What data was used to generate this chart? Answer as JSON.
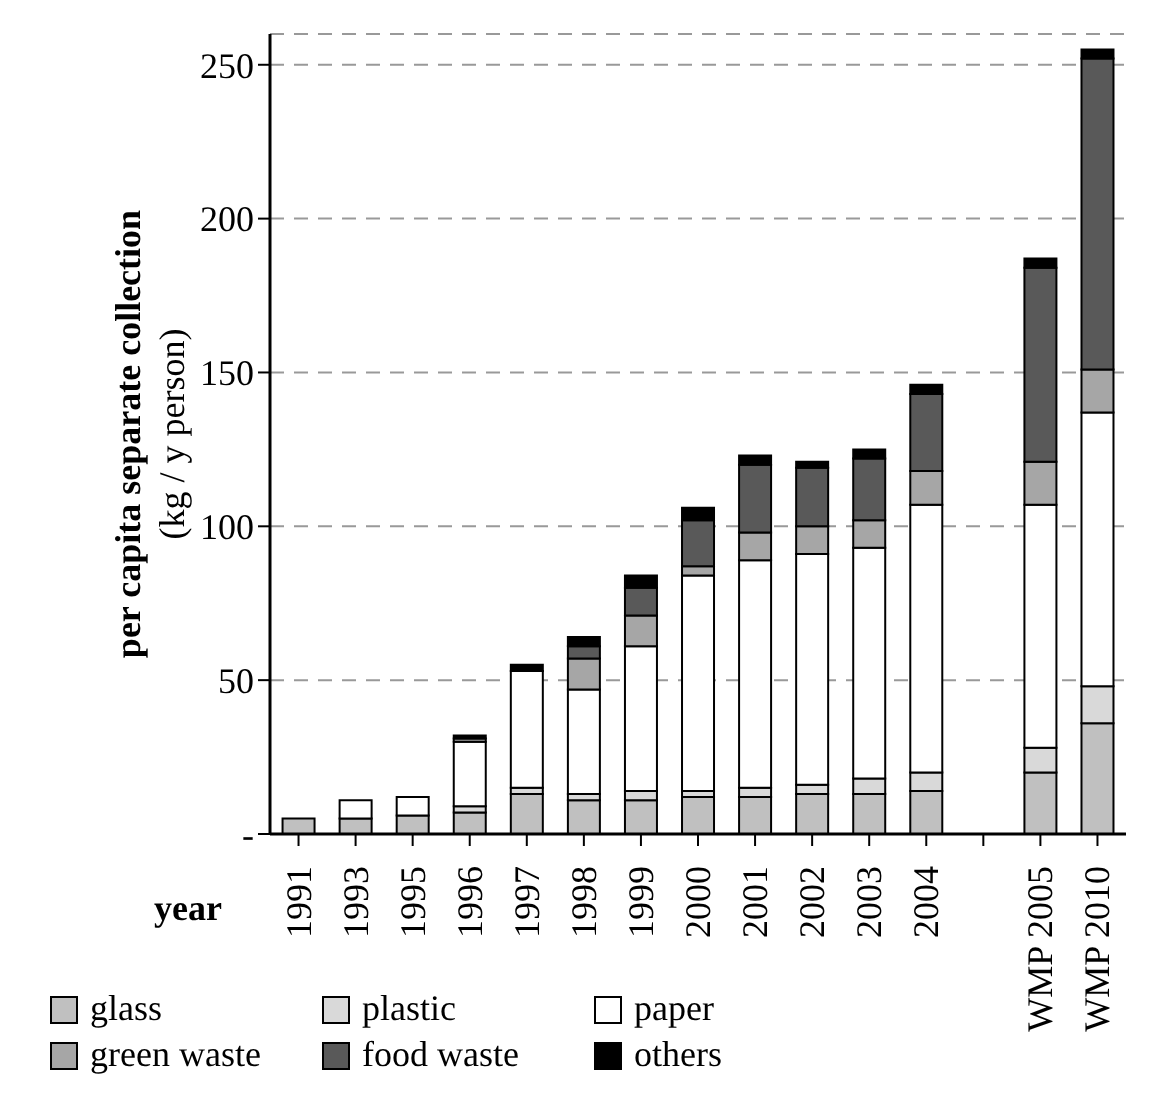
{
  "chart_data": {
    "type": "bar",
    "stacked": true,
    "xlabel": "year",
    "ylabel": "per capita separate collection (kg / y person)",
    "categories": [
      "1991",
      "1993",
      "1995",
      "1996",
      "1997",
      "1998",
      "1999",
      "2000",
      "2001",
      "2002",
      "2003",
      "2004",
      null,
      "WMP 2005",
      "WMP 2010"
    ],
    "series": [
      {
        "name": "glass",
        "color": "#c0c0c0",
        "values": [
          5,
          5,
          6,
          7,
          13,
          11,
          11,
          12,
          12,
          13,
          13,
          14,
          null,
          20,
          36
        ]
      },
      {
        "name": "plastic",
        "color": "#d9d9d9",
        "values": [
          0,
          0,
          0,
          2,
          2,
          2,
          3,
          2,
          3,
          3,
          5,
          6,
          null,
          8,
          12
        ]
      },
      {
        "name": "paper",
        "color": "#ffffff",
        "values": [
          0,
          6,
          6,
          21,
          38,
          34,
          47,
          70,
          74,
          75,
          75,
          87,
          null,
          79,
          89
        ]
      },
      {
        "name": "green waste",
        "color": "#a6a6a6",
        "values": [
          0,
          0,
          0,
          1,
          0,
          10,
          10,
          3,
          9,
          9,
          9,
          11,
          null,
          14,
          14
        ]
      },
      {
        "name": "food waste",
        "color": "#595959",
        "values": [
          0,
          0,
          0,
          0,
          0,
          4,
          9,
          15,
          22,
          19,
          20,
          25,
          null,
          63,
          101
        ]
      },
      {
        "name": "others",
        "color": "#000000",
        "values": [
          0,
          0,
          0,
          1,
          2,
          3,
          4,
          4,
          3,
          2,
          3,
          3,
          null,
          3,
          3
        ]
      }
    ],
    "ylim": [
      0,
      260
    ],
    "yticks": [
      {
        "value": 0,
        "label": "-"
      },
      50,
      100,
      150,
      200,
      250
    ],
    "grid": "y",
    "legend": "bottom left"
  }
}
